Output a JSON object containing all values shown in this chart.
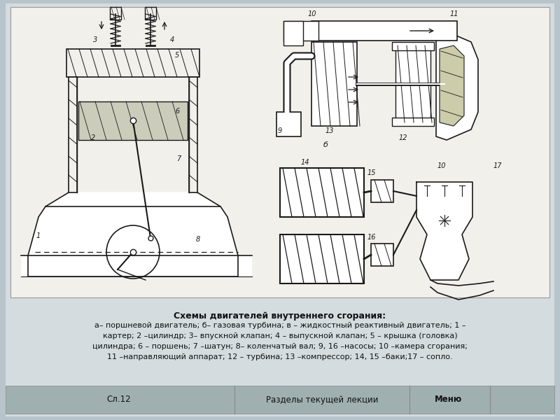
{
  "bg_color": "#b8c4cc",
  "panel_color": "#d4dce0",
  "diagram_bg": "#f2f0eb",
  "line_color": "#1a1a1a",
  "hatch_gray": "#aaaaaa",
  "title_text": "Схемы двигателей внутреннего сгорания:",
  "caption_lines": [
    "а– поршневой двигатель; б– газовая турбина; в – жидкостный реактивный двигатель; 1 –",
    "картер; 2 –цилиндр; 3– впускной клапан; 4 – выпускной клапан; 5 – крышка (головка)",
    "цилиндра; 6 – поршень; 7 –шатун; 8– коленчатый вал; 9, 16 –насосы; 10 –камера сгорания;",
    "11 –направляющий аппарат; 12 – турбина; 13 –компрессор; 14, 15 –баки;17 – сопло."
  ],
  "bottom_labels": [
    "Сл.12",
    "Разделы текущей лекции",
    "Меню"
  ],
  "label_fs": 7,
  "caption_fs": 8,
  "title_fs": 9
}
